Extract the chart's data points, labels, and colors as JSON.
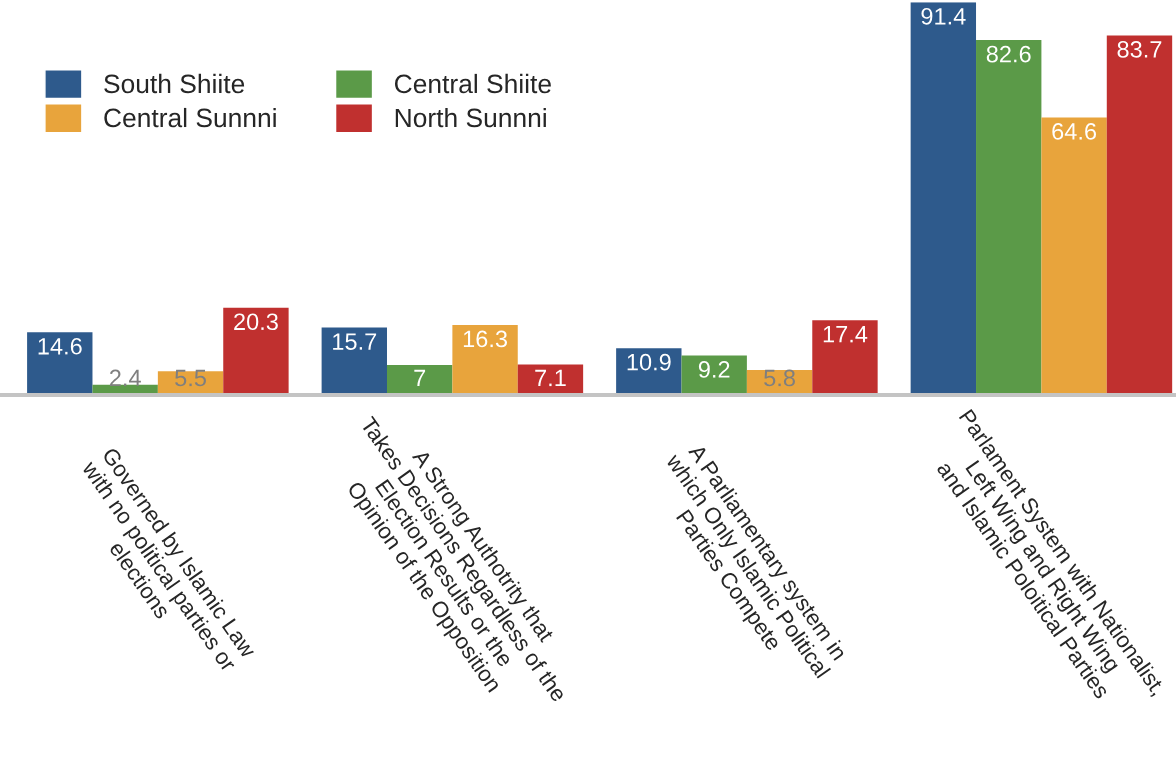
{
  "chart_data": {
    "type": "bar",
    "categories": [
      "Governed by Islamic Law\nwith no political parties or\nelections",
      "A Strong Authotrity that\nTakes Decisions Regardless of the\nElection Results or the\nOpinion of the Opposition",
      "A Parliamentary system in\nwhich Only Islamic Political\nParties Compete",
      "Parlament System with Nationalist,\nLeft Wing and Right Wing\nand Islamic Poloitical Parties"
    ],
    "series": [
      {
        "name": "South Shiite",
        "color": "#2e5a8c",
        "values": [
          14.6,
          15.7,
          10.9,
          91.4
        ]
      },
      {
        "name": "Central Shiite",
        "color": "#5b9a48",
        "values": [
          2.4,
          7,
          9.2,
          82.6
        ]
      },
      {
        "name": "Central Sunnni",
        "color": "#e8a43c",
        "values": [
          5.5,
          16.3,
          5.8,
          64.6
        ]
      },
      {
        "name": "North Sunnni",
        "color": "#c0302f",
        "values": [
          20.3,
          7.1,
          17.4,
          83.7
        ]
      }
    ],
    "data_labels": true,
    "legend": "top left",
    "tick_labels": "x"
  }
}
